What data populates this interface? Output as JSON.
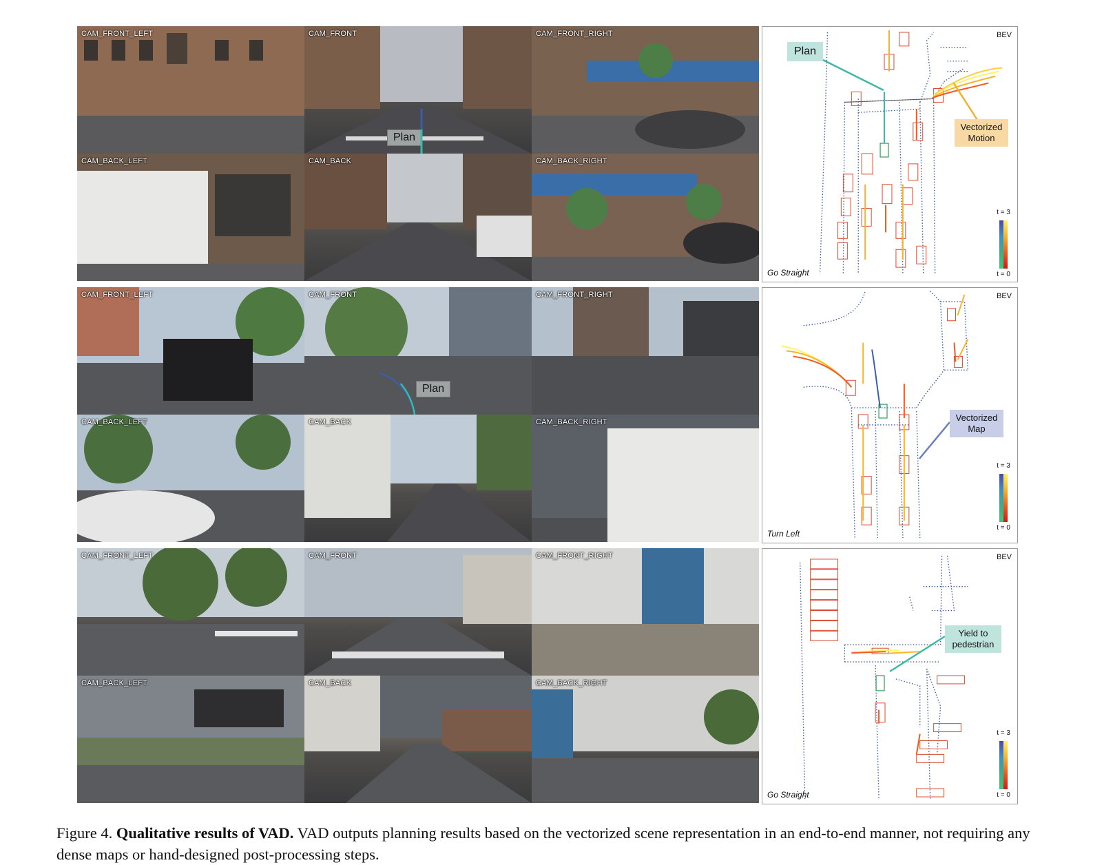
{
  "figure": {
    "rows": [
      {
        "cameras": [
          "CAM_FRONT_LEFT",
          "CAM_FRONT",
          "CAM_FRONT_RIGHT",
          "CAM_BACK_LEFT",
          "CAM_BACK",
          "CAM_BACK_RIGHT"
        ],
        "plan_tag": "Plan",
        "bev": {
          "title": "BEV",
          "command": "Go Straight",
          "t_top": "t = 3",
          "t_bottom": "t = 0",
          "callouts": [
            "Plan",
            "Vectorized\nMotion"
          ]
        }
      },
      {
        "cameras": [
          "CAM_FRONT_LEFT",
          "CAM_FRONT",
          "CAM_FRONT_RIGHT",
          "CAM_BACK_LEFT",
          "CAM_BACK",
          "CAM_BACK_RIGHT"
        ],
        "plan_tag": "Plan",
        "bev": {
          "title": "BEV",
          "command": "Turn Left",
          "t_top": "t = 3",
          "t_bottom": "t = 0",
          "callouts": [
            "Vectorized\nMap"
          ]
        }
      },
      {
        "cameras": [
          "CAM_FRONT_LEFT",
          "CAM_FRONT",
          "CAM_FRONT_RIGHT",
          "CAM_BACK_LEFT",
          "CAM_BACK",
          "CAM_BACK_RIGHT"
        ],
        "plan_tag": "",
        "bev": {
          "title": "BEV",
          "command": "Go Straight",
          "t_top": "t = 3",
          "t_bottom": "t = 0",
          "callouts": [
            "Yield to\npedestrian"
          ]
        }
      }
    ],
    "caption": {
      "label": "Figure 4.",
      "bold": "Qualitative results of VAD.",
      "text": "VAD outputs planning results based on the vectorized scene representation in an end-to-end manner, not requiring any dense maps or hand-designed post-processing steps."
    },
    "colors": {
      "map_line": "#3b5ea8",
      "ego_box": "#2e9e5e",
      "agent_box": "#d84a32",
      "plan_line": "#3bb8a8",
      "callout_plan": "#bfe3dd",
      "callout_motion": "#f8d9a4",
      "callout_map": "#c8cde8",
      "callout_yield": "#bfe3dd"
    }
  }
}
